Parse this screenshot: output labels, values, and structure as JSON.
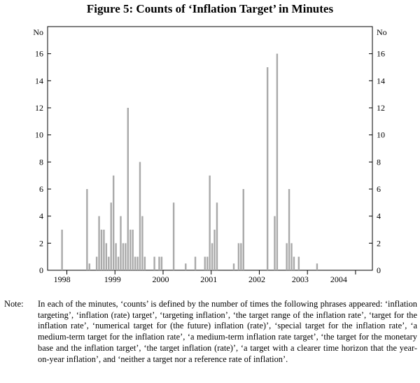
{
  "chart_data": {
    "type": "bar",
    "title": "Figure 5: Counts of ‘Inflation Target’ in Minutes",
    "ylabel_left": "No",
    "ylabel_right": "No",
    "ylim": [
      0,
      18
    ],
    "yticks": [
      0,
      2,
      4,
      6,
      8,
      10,
      12,
      14,
      16
    ],
    "xlim": [
      1997.6,
      2004.35
    ],
    "year_labels": [
      {
        "label": "1998",
        "x": 1997.9
      },
      {
        "label": "1999",
        "x": 1998.95
      },
      {
        "label": "2000",
        "x": 1999.95
      },
      {
        "label": "2001",
        "x": 2000.95
      },
      {
        "label": "2002",
        "x": 2001.95
      },
      {
        "label": "2003",
        "x": 2002.85
      },
      {
        "label": "2004",
        "x": 2003.65
      }
    ],
    "year_boundaries": [
      1998.0,
      1999.0,
      2000.0,
      2001.0,
      2002.0,
      2003.0,
      2004.0
    ],
    "grid": false,
    "series": [
      {
        "name": "Counts",
        "points": [
          {
            "x": 1997.9,
            "value": 3
          },
          {
            "x": 1998.42,
            "value": 6
          },
          {
            "x": 1998.47,
            "value": 0.5
          },
          {
            "x": 1998.62,
            "value": 1
          },
          {
            "x": 1998.67,
            "value": 4
          },
          {
            "x": 1998.72,
            "value": 3
          },
          {
            "x": 1998.77,
            "value": 3
          },
          {
            "x": 1998.82,
            "value": 2
          },
          {
            "x": 1998.87,
            "value": 1
          },
          {
            "x": 1998.92,
            "value": 5
          },
          {
            "x": 1998.97,
            "value": 7
          },
          {
            "x": 1999.02,
            "value": 2
          },
          {
            "x": 1999.07,
            "value": 1
          },
          {
            "x": 1999.12,
            "value": 4
          },
          {
            "x": 1999.17,
            "value": 2
          },
          {
            "x": 1999.22,
            "value": 2
          },
          {
            "x": 1999.27,
            "value": 12
          },
          {
            "x": 1999.32,
            "value": 3
          },
          {
            "x": 1999.37,
            "value": 3
          },
          {
            "x": 1999.42,
            "value": 1
          },
          {
            "x": 1999.47,
            "value": 1
          },
          {
            "x": 1999.52,
            "value": 8
          },
          {
            "x": 1999.57,
            "value": 4
          },
          {
            "x": 1999.62,
            "value": 1
          },
          {
            "x": 1999.82,
            "value": 1
          },
          {
            "x": 1999.92,
            "value": 1
          },
          {
            "x": 1999.97,
            "value": 1
          },
          {
            "x": 2000.22,
            "value": 5
          },
          {
            "x": 2000.47,
            "value": 0.5
          },
          {
            "x": 2000.67,
            "value": 1
          },
          {
            "x": 2000.87,
            "value": 1
          },
          {
            "x": 2000.92,
            "value": 1
          },
          {
            "x": 2000.97,
            "value": 7
          },
          {
            "x": 2001.02,
            "value": 2
          },
          {
            "x": 2001.07,
            "value": 3
          },
          {
            "x": 2001.12,
            "value": 5
          },
          {
            "x": 2001.47,
            "value": 0.5
          },
          {
            "x": 2001.57,
            "value": 2
          },
          {
            "x": 2001.62,
            "value": 2
          },
          {
            "x": 2001.67,
            "value": 6
          },
          {
            "x": 2002.17,
            "value": 15
          },
          {
            "x": 2002.32,
            "value": 4
          },
          {
            "x": 2002.37,
            "value": 16
          },
          {
            "x": 2002.57,
            "value": 2
          },
          {
            "x": 2002.62,
            "value": 6
          },
          {
            "x": 2002.67,
            "value": 2
          },
          {
            "x": 2002.72,
            "value": 1
          },
          {
            "x": 2002.82,
            "value": 1
          },
          {
            "x": 2003.2,
            "value": 0.5
          }
        ]
      }
    ]
  },
  "note": {
    "label": "Note:",
    "text": "In each of the minutes, ‘counts’ is defined by the number of times the following phrases appeared: ‘inflation targeting’, ‘inflation (rate) target’, ‘targeting inflation’, ‘the target range of the inflation rate’, ‘target for the inflation rate’, ‘numerical target for (the future) inflation (rate)’, ‘special target for the inflation rate’, ‘a medium-term target for the inflation rate’, ‘a medium-term inflation rate target’, ‘the target for the monetary base and the inflation target’, ‘the target inflation (rate)’, ‘a target with a clearer time horizon that the year-on-year inflation’, and ‘neither a target nor a reference rate of inflation’."
  }
}
